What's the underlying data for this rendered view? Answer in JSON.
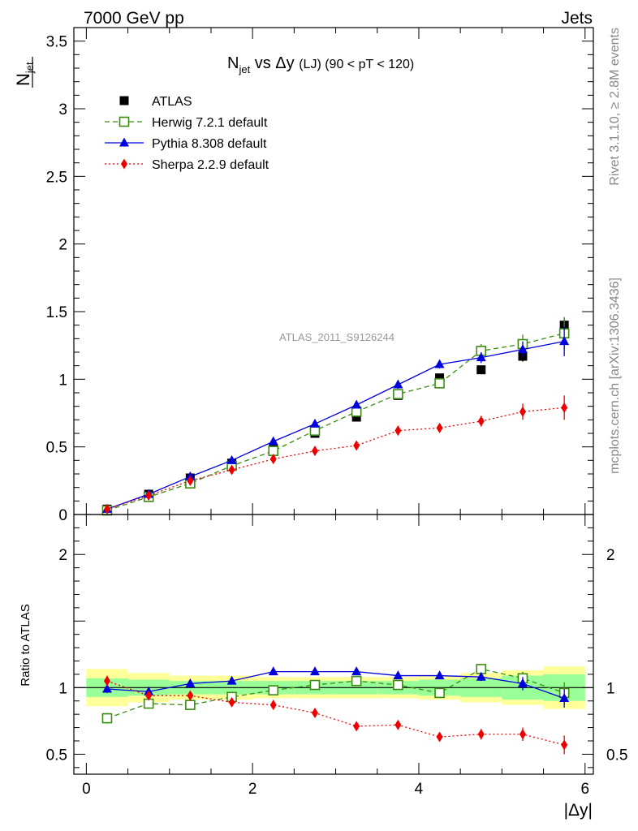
{
  "header": {
    "left": "7000 GeV pp",
    "right": "Jets"
  },
  "side": {
    "rivet": "Rivet 3.1.10, ≥ 2.8M events",
    "mcplots": "mcplots.cern.ch [arXiv:1306.3436]"
  },
  "colors": {
    "atlas": "#000000",
    "herwig": "#3a8c10",
    "pythia": "#0000dd",
    "sherpa": "#ee0000",
    "band_inner": "#99ff99",
    "band_outer": "#ffff99"
  },
  "chart_data": [
    {
      "type": "line",
      "title_main": "N",
      "title_sub": "jet",
      "title_rest": " vs Δy ",
      "title_small": "(LJ) (90 < pT < 120)",
      "ylabel_main": "N",
      "ylabel_sub": "jet",
      "ylim": [
        0,
        3.6
      ],
      "yticks": [
        0,
        0.5,
        1,
        1.5,
        2,
        2.5,
        3,
        3.5
      ],
      "yticklabels": [
        "0",
        "0.5",
        "1",
        "1.5",
        "2",
        "2.5",
        "3",
        "3.5"
      ],
      "watermark": "ATLAS_2011_S9126244",
      "legend_position": "top-left",
      "x": [
        0.25,
        0.75,
        1.25,
        1.75,
        2.25,
        2.75,
        3.25,
        3.75,
        4.25,
        4.75,
        5.25,
        5.75
      ],
      "series": [
        {
          "name": "ATLAS",
          "key": "atlas",
          "marker": "square",
          "values": [
            0.04,
            0.15,
            0.27,
            0.38,
            0.48,
            0.6,
            0.72,
            0.88,
            1.01,
            1.07,
            1.17,
            1.4
          ],
          "errors": [
            0.005,
            0.01,
            0.01,
            0.01,
            0.015,
            0.015,
            0.02,
            0.02,
            0.03,
            0.03,
            0.04,
            0.05
          ]
        },
        {
          "name": "Herwig 7.2.1 default",
          "key": "herwig",
          "marker": "open-square",
          "values": [
            0.03,
            0.13,
            0.23,
            0.36,
            0.47,
            0.62,
            0.76,
            0.89,
            0.97,
            1.21,
            1.26,
            1.34
          ],
          "errors": [
            0.005,
            0.01,
            0.01,
            0.01,
            0.02,
            0.02,
            0.02,
            0.03,
            0.03,
            0.05,
            0.07,
            0.12
          ]
        },
        {
          "name": "Pythia 8.308 default",
          "key": "pythia",
          "marker": "triangle",
          "values": [
            0.04,
            0.15,
            0.28,
            0.4,
            0.54,
            0.67,
            0.81,
            0.96,
            1.11,
            1.16,
            1.22,
            1.28
          ],
          "errors": [
            0.005,
            0.01,
            0.01,
            0.01,
            0.02,
            0.02,
            0.02,
            0.03,
            0.03,
            0.04,
            0.06,
            0.11
          ]
        },
        {
          "name": "Sherpa 2.2.9 default",
          "key": "sherpa",
          "marker": "diamond",
          "values": [
            0.04,
            0.14,
            0.25,
            0.33,
            0.41,
            0.47,
            0.51,
            0.62,
            0.64,
            0.69,
            0.76,
            0.79
          ],
          "errors": [
            0.005,
            0.01,
            0.01,
            0.015,
            0.015,
            0.02,
            0.02,
            0.02,
            0.03,
            0.04,
            0.06,
            0.09
          ]
        }
      ]
    },
    {
      "type": "line",
      "ylabel": "Ratio to ATLAS",
      "xlabel": "|Δy|",
      "xlim": [
        -0.15,
        6.1
      ],
      "xticks": [
        0,
        2,
        4,
        6
      ],
      "xticklabels": [
        "0",
        "2",
        "4",
        "6"
      ],
      "ylim": [
        0.35,
        2.3
      ],
      "yticks": [
        0.5,
        1,
        2
      ],
      "yticklabels": [
        "0.5",
        "1",
        "2"
      ],
      "reference_line": 1,
      "x": [
        0.25,
        0.75,
        1.25,
        1.75,
        2.25,
        2.75,
        3.25,
        3.75,
        4.25,
        4.75,
        5.25,
        5.75
      ],
      "bands": {
        "x_edges": [
          0,
          0.5,
          1.0,
          1.5,
          2.0,
          2.5,
          3.0,
          3.5,
          4.0,
          4.5,
          5.0,
          5.5,
          6.0
        ],
        "inner": [
          0.07,
          0.06,
          0.05,
          0.05,
          0.05,
          0.05,
          0.05,
          0.05,
          0.06,
          0.07,
          0.09,
          0.1
        ],
        "outer": [
          0.14,
          0.11,
          0.09,
          0.09,
          0.08,
          0.08,
          0.08,
          0.08,
          0.09,
          0.11,
          0.13,
          0.16
        ]
      },
      "series": [
        {
          "name": "Herwig 7.2.1 default",
          "key": "herwig",
          "marker": "open-square",
          "values": [
            0.77,
            0.88,
            0.87,
            0.93,
            0.98,
            1.02,
            1.05,
            1.02,
            0.96,
            1.14,
            1.07,
            0.96
          ],
          "errors": [
            0.04,
            0.02,
            0.015,
            0.015,
            0.015,
            0.015,
            0.015,
            0.02,
            0.02,
            0.03,
            0.05,
            0.08
          ]
        },
        {
          "name": "Pythia 8.308 default",
          "key": "pythia",
          "marker": "triangle",
          "values": [
            0.99,
            0.97,
            1.03,
            1.05,
            1.12,
            1.12,
            1.12,
            1.09,
            1.09,
            1.08,
            1.03,
            0.92
          ],
          "errors": [
            0.03,
            0.015,
            0.015,
            0.015,
            0.015,
            0.015,
            0.015,
            0.02,
            0.02,
            0.03,
            0.05,
            0.07
          ]
        },
        {
          "name": "Sherpa 2.2.9 default",
          "key": "sherpa",
          "marker": "diamond",
          "values": [
            1.05,
            0.94,
            0.94,
            0.89,
            0.87,
            0.81,
            0.71,
            0.72,
            0.63,
            0.65,
            0.65,
            0.57
          ],
          "errors": [
            0.04,
            0.015,
            0.015,
            0.015,
            0.015,
            0.015,
            0.02,
            0.02,
            0.03,
            0.04,
            0.05,
            0.07
          ]
        }
      ]
    }
  ]
}
